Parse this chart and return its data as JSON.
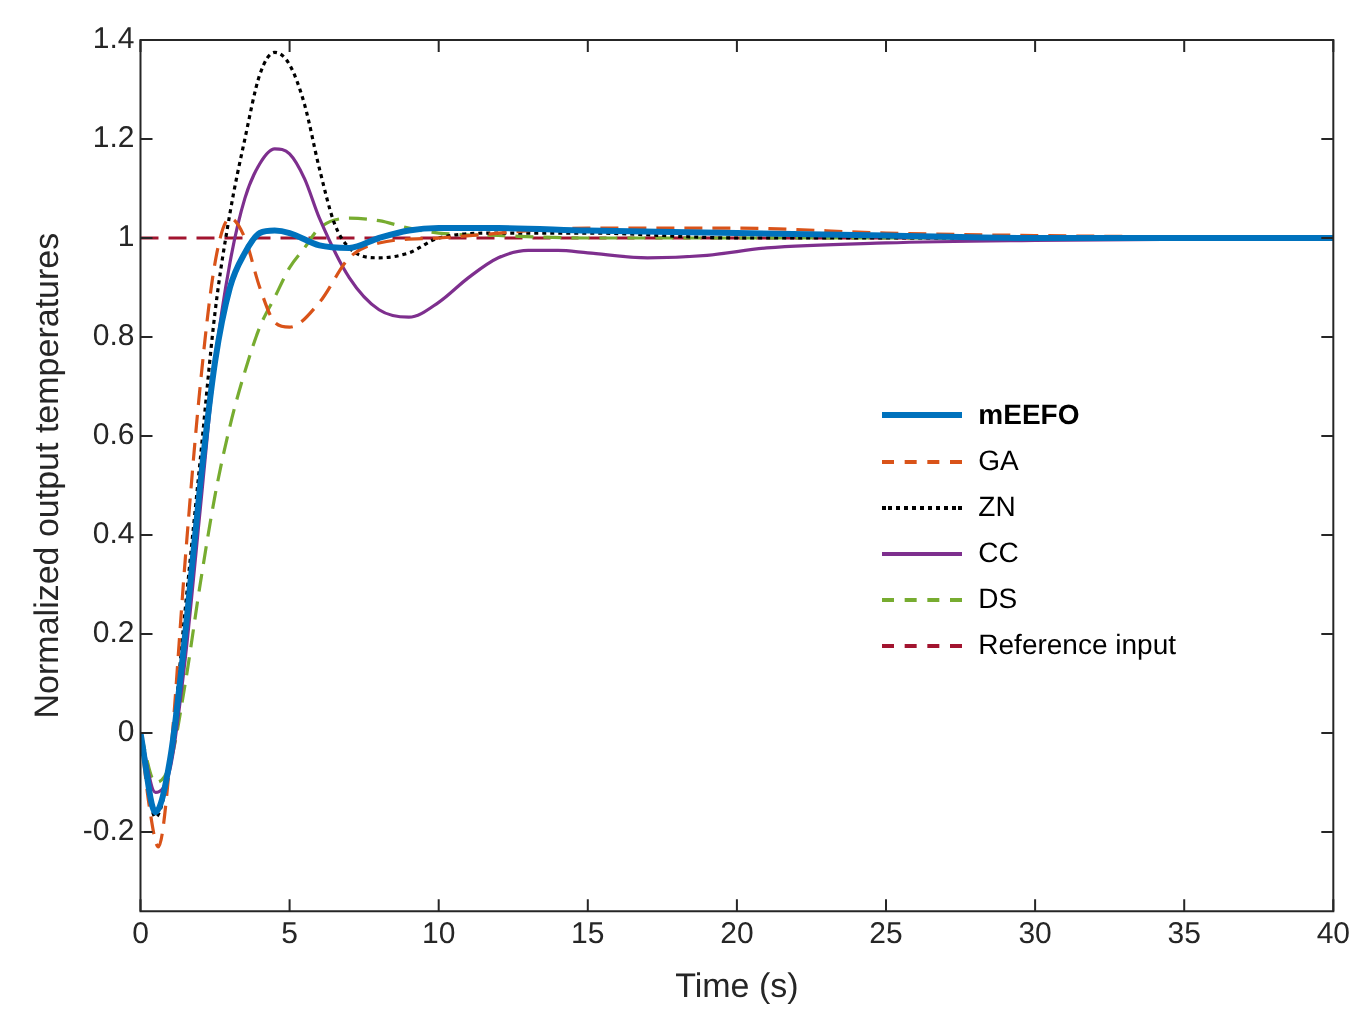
{
  "chart_data": {
    "type": "line",
    "xlabel": "Time (s)",
    "ylabel": "Normalized output temperatures",
    "xlim": [
      0,
      40
    ],
    "xticks": [
      0,
      5,
      10,
      15,
      20,
      25,
      30,
      35,
      40
    ],
    "ylim": [
      -0.36,
      1.4
    ],
    "yticks": [
      -0.2,
      0,
      0.2,
      0.4,
      0.6,
      0.8,
      1,
      1.2,
      1.4
    ],
    "grid": false,
    "legend": "right",
    "marker": "none",
    "series": [
      {
        "name": "mEEFO",
        "color": "#0072bd",
        "line_style": "solid",
        "x": [
          0,
          0.5,
          1,
          1.5,
          2,
          2.5,
          3,
          3.5,
          4,
          4.5,
          5,
          6,
          7,
          8,
          9,
          10,
          12,
          15,
          20,
          25,
          30,
          40
        ],
        "values": [
          0,
          -0.16,
          -0.05,
          0.2,
          0.5,
          0.75,
          0.9,
          0.97,
          1.01,
          1.015,
          1.01,
          0.985,
          0.98,
          1.0,
          1.015,
          1.02,
          1.02,
          1.015,
          1.01,
          1.005,
          1.0,
          1.0
        ]
      },
      {
        "name": "GA",
        "color": "#d95319",
        "line_style": "dashed",
        "x": [
          0,
          0.3,
          0.6,
          1,
          1.5,
          2,
          2.5,
          3,
          3.5,
          4,
          4.5,
          5,
          6,
          7,
          8,
          10,
          15,
          20,
          25,
          30,
          40
        ],
        "values": [
          0,
          -0.15,
          -0.23,
          -0.05,
          0.35,
          0.7,
          0.95,
          1.04,
          1.0,
          0.9,
          0.83,
          0.82,
          0.87,
          0.96,
          0.99,
          1.0,
          1.02,
          1.02,
          1.01,
          1.005,
          1.0
        ]
      },
      {
        "name": "ZN",
        "color": "#000000",
        "line_style": "dotted",
        "x": [
          0,
          0.5,
          1,
          1.5,
          2,
          2.5,
          3,
          3.5,
          4,
          4.5,
          5,
          5.5,
          6,
          6.5,
          7,
          8,
          9,
          10,
          12,
          15,
          20,
          40
        ],
        "values": [
          0,
          -0.17,
          -0.05,
          0.25,
          0.55,
          0.85,
          1.05,
          1.2,
          1.33,
          1.375,
          1.35,
          1.27,
          1.14,
          1.03,
          0.98,
          0.96,
          0.97,
          1.0,
          1.01,
          1.01,
          1.0,
          1.0
        ]
      },
      {
        "name": "CC",
        "color": "#7e2f8e",
        "line_style": "solid",
        "x": [
          0,
          0.5,
          1,
          1.5,
          2,
          2.5,
          3,
          3.5,
          4,
          4.5,
          5,
          5.5,
          6,
          7,
          8,
          9,
          10,
          11,
          12,
          13,
          14,
          15,
          17,
          19,
          21,
          25,
          30,
          40
        ],
        "values": [
          0,
          -0.12,
          -0.07,
          0.15,
          0.45,
          0.75,
          0.95,
          1.08,
          1.15,
          1.18,
          1.17,
          1.12,
          1.04,
          0.92,
          0.855,
          0.84,
          0.87,
          0.92,
          0.96,
          0.975,
          0.975,
          0.97,
          0.96,
          0.965,
          0.98,
          0.99,
          0.995,
          1.0
        ]
      },
      {
        "name": "DS",
        "color": "#77ac30",
        "line_style": "dashed",
        "x": [
          0,
          0.5,
          1,
          1.5,
          2,
          2.5,
          3,
          3.5,
          4,
          4.5,
          5,
          5.5,
          6,
          7,
          8,
          9,
          10,
          12,
          15,
          40
        ],
        "values": [
          0,
          -0.1,
          -0.06,
          0.1,
          0.3,
          0.48,
          0.62,
          0.73,
          0.82,
          0.88,
          0.94,
          0.98,
          1.02,
          1.04,
          1.035,
          1.02,
          1.01,
          1.005,
          1.0,
          1.0
        ]
      },
      {
        "name": "Reference input",
        "color": "#a2142f",
        "line_style": "dashed",
        "x": [
          0,
          40
        ],
        "values": [
          1,
          1
        ]
      }
    ]
  }
}
